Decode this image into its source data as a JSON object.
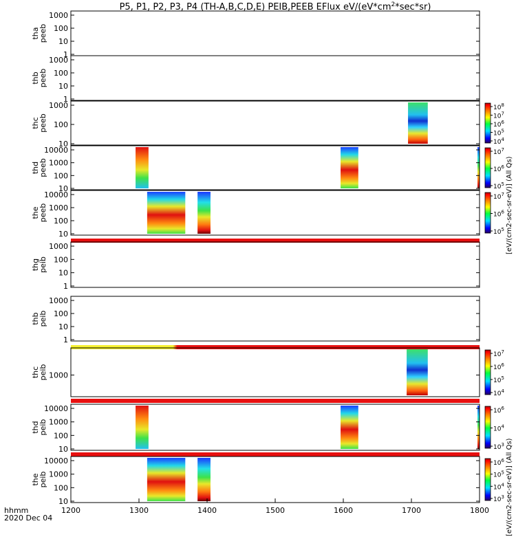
{
  "chart_data": {
    "type": "heatmap",
    "title_parts": [
      "P5, P1, P2, P3, P4 (TH-A,B,C,D,E) PEIB,PEEB EFlux eV/(eV*cm",
      "2",
      "*sec*sr)"
    ],
    "x": {
      "range": [
        1200,
        1800
      ],
      "ticks": [
        1200,
        1300,
        1400,
        1500,
        1600,
        1700,
        1800
      ],
      "labels": [
        "1200",
        "1300",
        "1400",
        "1500",
        "1600",
        "1700",
        "1800"
      ],
      "corner_label": [
        "hhmm",
        "2020 Dec 04"
      ]
    },
    "colorbar_titles": {
      "peeb": "[eV/(cm2-sec-sr-eV)] (All Qs)",
      "peib": "[eV/(cm2-sec-sr-eV)] (All Qs)"
    },
    "panels": [
      {
        "id": "tha-peeb",
        "label": [
          "tha",
          "peeb"
        ],
        "yticks": [
          "1000",
          "100",
          "10",
          "1"
        ],
        "coverage": [],
        "flag": null,
        "cbar": null
      },
      {
        "id": "thb-peeb",
        "label": [
          "thb",
          "peeb"
        ],
        "yticks": [
          "1000",
          "100",
          "10",
          "1"
        ],
        "coverage": [],
        "flag": null,
        "cbar": null
      },
      {
        "id": "thc-peeb",
        "label": [
          "thc",
          "peeb"
        ],
        "yticks": [
          "1000",
          "100",
          "10"
        ],
        "coverage": [
          [
            1695,
            1724
          ]
        ],
        "flag": null,
        "cbar": {
          "labels": [
            "10",
            "10",
            "10",
            "10",
            "10"
          ],
          "exps": [
            "8",
            "7",
            "6",
            "5",
            "4"
          ]
        }
      },
      {
        "id": "thd-peeb",
        "label": [
          "thd",
          "peeb"
        ],
        "yticks": [
          "10000",
          "1000",
          "100",
          "10"
        ],
        "coverage": [
          [
            1295,
            1314
          ],
          [
            1596,
            1622
          ],
          [
            1797,
            1800
          ]
        ],
        "flag": null,
        "cbar": {
          "labels": [
            "10",
            "10",
            "10"
          ],
          "exps": [
            "7",
            "6",
            "5"
          ]
        }
      },
      {
        "id": "the-peeb",
        "label": [
          "the",
          "peeb"
        ],
        "yticks": [
          "10000",
          "1000",
          "100",
          "10"
        ],
        "coverage": [
          [
            1312,
            1368
          ],
          [
            1386,
            1405
          ]
        ],
        "flag": "red",
        "cbar": {
          "labels": [
            "10",
            "10",
            "10"
          ],
          "exps": [
            "7",
            "6",
            "5"
          ]
        }
      },
      {
        "id": "thg-peib",
        "label": [
          "thg",
          "peib"
        ],
        "yticks": [
          "1000",
          "100",
          "10",
          "1"
        ],
        "coverage": [],
        "flag": null,
        "cbar": null
      },
      {
        "id": "thb-peib",
        "label": [
          "thb",
          "peib"
        ],
        "yticks": [
          "1000",
          "100",
          "10",
          "1"
        ],
        "coverage": [],
        "flag": "yellow-red",
        "cbar": null
      },
      {
        "id": "thc-peib",
        "label": [
          "thc",
          "peib"
        ],
        "yticks": [
          "1000"
        ],
        "coverage": [
          [
            1693,
            1724
          ]
        ],
        "flag": "red",
        "cbar": {
          "labels": [
            "10",
            "10",
            "10",
            "10"
          ],
          "exps": [
            "7",
            "6",
            "5",
            "4"
          ]
        }
      },
      {
        "id": "thd-peib",
        "label": [
          "thd",
          "peib"
        ],
        "yticks": [
          "10000",
          "1000",
          "100",
          "10"
        ],
        "coverage": [
          [
            1295,
            1314
          ],
          [
            1596,
            1622
          ],
          [
            1797,
            1800
          ]
        ],
        "flag": "red",
        "cbar": {
          "labels": [
            "10",
            "10",
            "10"
          ],
          "exps": [
            "6",
            "4",
            "3"
          ]
        }
      },
      {
        "id": "the-peib",
        "label": [
          "the",
          "peib"
        ],
        "yticks": [
          "10000",
          "1000",
          "100",
          "10"
        ],
        "coverage": [
          [
            1312,
            1368
          ],
          [
            1386,
            1405
          ]
        ],
        "flag": null,
        "cbar": {
          "labels": [
            "10",
            "10",
            "10",
            "10"
          ],
          "exps": [
            "6",
            "5",
            "4",
            "3"
          ]
        }
      }
    ]
  }
}
